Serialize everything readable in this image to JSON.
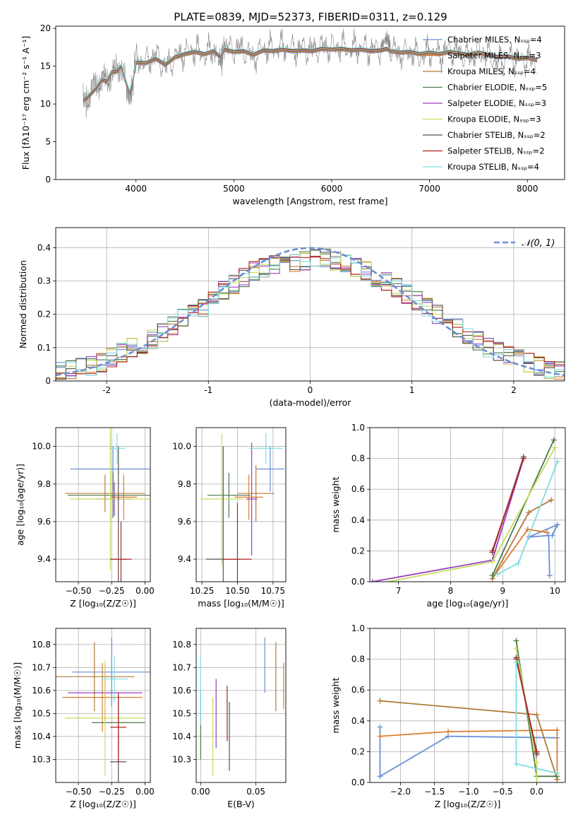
{
  "figure_title": "PLATE=0839, MJD=52373, FIBERID=0311, z=0.129",
  "series": [
    {
      "label": "Chabrier MILES, N_SSP=4",
      "color": "#6a8fd8"
    },
    {
      "label": "Salpeter MILES, N_SSP=3",
      "color": "#dd7d2e"
    },
    {
      "label": "Kroupa MILES, N_SSP=4",
      "color": "#b07a3a"
    },
    {
      "label": "Chabrier ELODIE, N_SSP=5",
      "color": "#4a7a4a"
    },
    {
      "label": "Salpeter ELODIE, N_SSP=3",
      "color": "#9a3fc0"
    },
    {
      "label": "Kroupa ELODIE, N_SSP=3",
      "color": "#c6dd5e"
    },
    {
      "label": "Chabrier STELIB, N_SSP=2",
      "color": "#555555"
    },
    {
      "label": "Salpeter STELIB, N_SSP=2",
      "color": "#b22222"
    },
    {
      "label": "Kroupa STELIB, N_SSP=4",
      "color": "#7fdde0"
    }
  ],
  "chart_data": [
    {
      "id": "spectrum",
      "type": "line",
      "xlabel": "wavelength [Angstrom, rest frame]",
      "ylabel": "Flux [fλ10⁻¹⁷ erg cm⁻² s⁻¹ A⁻¹]",
      "xlim": [
        3180,
        8380
      ],
      "ylim": [
        0,
        20.3
      ],
      "xticks": [
        4000,
        5000,
        6000,
        7000,
        8000
      ],
      "yticks": [
        0,
        5,
        10,
        15,
        20
      ],
      "data_color": "#808080",
      "data_x": [
        3460,
        3500,
        3550,
        3600,
        3650,
        3700,
        3750,
        3800,
        3850,
        3900,
        3935,
        3970,
        4000,
        4100,
        4200,
        4300,
        4400,
        4500,
        4600,
        4700,
        4800,
        4861,
        4900,
        5000,
        5100,
        5200,
        5300,
        5400,
        5500,
        5600,
        5700,
        5800,
        5900,
        6000,
        6100,
        6200,
        6300,
        6400,
        6500,
        6563,
        6600,
        6700,
        6800,
        6900,
        7000,
        7100,
        7200,
        7300,
        7400,
        7500,
        7600,
        7700,
        7800,
        7900,
        8000,
        8100
      ],
      "data_y": [
        11,
        10.2,
        12.5,
        12,
        13.8,
        12.5,
        14.5,
        14,
        15.5,
        12,
        10.5,
        13,
        16,
        15.5,
        16.5,
        14.8,
        16.2,
        16.8,
        17.2,
        16.5,
        17.3,
        15.5,
        17.6,
        17.2,
        17.3,
        16.1,
        17.4,
        17.3,
        17.6,
        17.2,
        17.4,
        17.1,
        17.6,
        17.5,
        17.6,
        17.3,
        17.5,
        17.2,
        17.4,
        18.8,
        17.3,
        16.6,
        17.0,
        16.2,
        16.9,
        16.5,
        17.3,
        16.8,
        16.3,
        17.0,
        16.6,
        15.4,
        16.4,
        15.8,
        16.0,
        15.5
      ],
      "model_x": [
        3460,
        3500,
        3550,
        3600,
        3650,
        3700,
        3750,
        3800,
        3850,
        3900,
        3935,
        3970,
        4000,
        4100,
        4200,
        4300,
        4400,
        4500,
        4600,
        4700,
        4800,
        4861,
        4900,
        5000,
        5100,
        5200,
        5300,
        5400,
        5500,
        5600,
        5700,
        5800,
        5900,
        6000,
        6100,
        6200,
        6300,
        6400,
        6500,
        6563,
        6600,
        6700,
        6800,
        6900,
        7000,
        7100,
        7200,
        7300,
        7400,
        7500,
        7600,
        7700,
        7800,
        7900,
        8000,
        8100
      ],
      "model_y": [
        10.5,
        10.8,
        11.5,
        12.2,
        13.2,
        13.0,
        14.2,
        14.3,
        15.0,
        12.8,
        11.5,
        13.2,
        15.5,
        15.4,
        16.0,
        15.2,
        16.2,
        16.6,
        16.9,
        16.6,
        17.0,
        16.2,
        17.2,
        16.9,
        17.0,
        16.5,
        17.1,
        17.0,
        17.2,
        17.0,
        17.1,
        17.0,
        17.3,
        17.2,
        17.3,
        17.1,
        17.2,
        17.0,
        17.1,
        17.3,
        17.0,
        16.8,
        16.9,
        16.6,
        16.8,
        16.6,
        16.9,
        16.7,
        16.5,
        16.8,
        16.5,
        16.2,
        16.3,
        16.0,
        16.1,
        15.8
      ]
    },
    {
      "id": "residuals",
      "type": "histogram",
      "xlabel": "(data-model)/error",
      "ylabel": "Normed distribution",
      "xlim": [
        -2.5,
        2.5
      ],
      "ylim": [
        0,
        0.46
      ],
      "xticks": [
        -2,
        -1,
        0,
        1,
        2
      ],
      "yticks": [
        0,
        0.1,
        0.2,
        0.3,
        0.4
      ],
      "bin_edges": [
        -2.5,
        -2.4,
        -2.3,
        -2.2,
        -2.1,
        -2.0,
        -1.9,
        -1.8,
        -1.7,
        -1.6,
        -1.5,
        -1.4,
        -1.3,
        -1.2,
        -1.1,
        -1.0,
        -0.9,
        -0.8,
        -0.7,
        -0.6,
        -0.5,
        -0.4,
        -0.3,
        -0.2,
        -0.1,
        0.0,
        0.1,
        0.2,
        0.3,
        0.4,
        0.5,
        0.6,
        0.7,
        0.8,
        0.9,
        1.0,
        1.1,
        1.2,
        1.3,
        1.4,
        1.5,
        1.6,
        1.7,
        1.8,
        1.9,
        2.0,
        2.1,
        2.2,
        2.3,
        2.4,
        2.5
      ],
      "base_heights": [
        0.03,
        0.035,
        0.04,
        0.045,
        0.055,
        0.07,
        0.085,
        0.1,
        0.11,
        0.125,
        0.145,
        0.165,
        0.19,
        0.2,
        0.22,
        0.25,
        0.27,
        0.29,
        0.31,
        0.33,
        0.34,
        0.35,
        0.35,
        0.355,
        0.36,
        0.37,
        0.37,
        0.36,
        0.35,
        0.34,
        0.33,
        0.31,
        0.3,
        0.28,
        0.26,
        0.24,
        0.22,
        0.2,
        0.18,
        0.16,
        0.14,
        0.12,
        0.1,
        0.09,
        0.075,
        0.065,
        0.055,
        0.045,
        0.035,
        0.03
      ],
      "legend": "𝒩(0, 1)",
      "legend_position": "upper right",
      "curve_color": "#6a8fd8"
    },
    {
      "id": "age_vs_Z",
      "type": "errorbar",
      "xlabel": "Z [log₁₀(Z/Z☉)]",
      "ylabel": "age  [log₁₀(age/yr)]",
      "xlim": [
        -0.67,
        0.04
      ],
      "ylim": [
        9.28,
        10.1
      ],
      "xticks": [
        -0.5,
        -0.25,
        0.0
      ],
      "xtick_labels": [
        "−0.50",
        "−0.25",
        "0.00"
      ],
      "yticks": [
        9.4,
        9.6,
        9.8,
        10.0
      ],
      "ytick_labels": [
        "9.4",
        "9.6",
        "9.8",
        "10.0"
      ],
      "points": [
        {
          "s": 0,
          "x": -0.24,
          "xerr": 0.32,
          "y": 9.88,
          "yerr": 0.12
        },
        {
          "s": 1,
          "x": -0.16,
          "xerr": 0.1,
          "y": 9.73,
          "yerr": 0.12
        },
        {
          "s": 3,
          "x": -0.24,
          "xerr": 0.34,
          "y": 9.74,
          "yerr": 0.12
        },
        {
          "s": 4,
          "x": -0.23,
          "xerr": 0.14,
          "y": 9.72,
          "yerr": 0.09
        },
        {
          "s": 5,
          "x": -0.26,
          "xerr": 0.3,
          "y": 9.72,
          "yerr": 0.38
        },
        {
          "s": 6,
          "x": -0.2,
          "xerr": 0.06,
          "y": 9.4,
          "yerr": 0.6
        },
        {
          "s": 7,
          "x": -0.18,
          "xerr": 0.08,
          "y": 9.4,
          "yerr": 0.2
        },
        {
          "s": 8,
          "x": -0.21,
          "xerr": 0.06,
          "y": 9.99,
          "yerr": 0.08
        },
        {
          "s": 2,
          "x": -0.3,
          "xerr": 0.3,
          "y": 9.75,
          "yerr": 0.1
        }
      ]
    },
    {
      "id": "age_vs_mass",
      "type": "errorbar",
      "xlabel": "mass [log₁₀(M/M☉)]",
      "ylabel": "",
      "xlim": [
        10.21,
        10.84
      ],
      "ylim": [
        9.28,
        10.1
      ],
      "xticks": [
        10.25,
        10.5,
        10.75
      ],
      "xtick_labels": [
        "10.25",
        "10.50",
        "10.75"
      ],
      "yticks": [
        9.4,
        9.6,
        9.8,
        10.0
      ],
      "ytick_labels": [
        "9.4",
        "9.6",
        "9.8",
        "10.0"
      ],
      "points": [
        {
          "s": 0,
          "x": 10.73,
          "xerr": 0.1,
          "y": 9.88,
          "yerr": 0.12
        },
        {
          "s": 1,
          "x": 10.58,
          "xerr": 0.1,
          "y": 9.73,
          "yerr": 0.12
        },
        {
          "s": 2,
          "x": 10.63,
          "xerr": 0.13,
          "y": 9.75,
          "yerr": 0.15
        },
        {
          "s": 3,
          "x": 10.44,
          "xerr": 0.15,
          "y": 9.74,
          "yerr": 0.12
        },
        {
          "s": 4,
          "x": 10.6,
          "xerr": 0.04,
          "y": 9.72,
          "yerr": 0.3
        },
        {
          "s": 5,
          "x": 10.39,
          "xerr": 0.15,
          "y": 9.72,
          "yerr": 0.35
        },
        {
          "s": 6,
          "x": 10.4,
          "xerr": 0.12,
          "y": 9.4,
          "yerr": 0.6
        },
        {
          "s": 7,
          "x": 10.5,
          "xerr": 0.1,
          "y": 9.4,
          "yerr": 0.3
        },
        {
          "s": 8,
          "x": 10.7,
          "xerr": 0.12,
          "y": 9.99,
          "yerr": 0.08
        }
      ]
    },
    {
      "id": "weight_vs_age",
      "type": "line",
      "xlabel": "age  [log₁₀(age/yr)]",
      "ylabel": "mass weight",
      "xlim": [
        6.45,
        10.2
      ],
      "ylim": [
        0,
        1
      ],
      "xticks": [
        7,
        8,
        9,
        10
      ],
      "xtick_labels": [
        "7",
        "8",
        "9",
        "10"
      ],
      "yticks": [
        0,
        0.2,
        0.4,
        0.6,
        0.8,
        1.0
      ],
      "ytick_labels": [
        "0.0",
        "0.2",
        "0.4",
        "0.6",
        "0.8",
        "1.0"
      ],
      "lines": [
        {
          "s": 0,
          "x": [
            9.9,
            9.88,
            9.5,
            10.05,
            9.95
          ],
          "y": [
            0.04,
            0.3,
            0.29,
            0.37,
            0.3
          ]
        },
        {
          "s": 1,
          "x": [
            8.8,
            9.48,
            9.85
          ],
          "y": [
            0.02,
            0.34,
            0.32
          ]
        },
        {
          "s": 2,
          "x": [
            8.8,
            9.5,
            9.93
          ],
          "y": [
            0.02,
            0.45,
            0.53
          ]
        },
        {
          "s": 3,
          "x": [
            8.8,
            9.98
          ],
          "y": [
            0.04,
            0.92
          ]
        },
        {
          "s": 4,
          "x": [
            6.5,
            8.8,
            9.4
          ],
          "y": [
            0.0,
            0.14,
            0.8
          ]
        },
        {
          "s": 5,
          "x": [
            6.8,
            8.8,
            10.0
          ],
          "y": [
            0.0,
            0.13,
            0.87
          ]
        },
        {
          "s": 6,
          "x": [
            8.8,
            9.4
          ],
          "y": [
            0.19,
            0.81
          ]
        },
        {
          "s": 7,
          "x": [
            8.8,
            9.4
          ],
          "y": [
            0.2,
            0.8
          ]
        },
        {
          "s": 8,
          "x": [
            8.9,
            9.3,
            10.05
          ],
          "y": [
            0.05,
            0.12,
            0.78
          ]
        }
      ]
    },
    {
      "id": "mass_vs_Z",
      "type": "errorbar",
      "xlabel": "Z [log₁₀(Z/Z☉)]",
      "ylabel": "mass [log₁₀(M/M☉)]",
      "xlim": [
        -0.67,
        0.04
      ],
      "ylim": [
        10.2,
        10.87
      ],
      "xticks": [
        -0.5,
        -0.25,
        0.0
      ],
      "xtick_labels": [
        "−0.50",
        "−0.25",
        "0.00"
      ],
      "yticks": [
        10.3,
        10.4,
        10.5,
        10.6,
        10.7,
        10.8
      ],
      "ytick_labels": [
        "10.3",
        "10.4",
        "10.5",
        "10.6",
        "10.7",
        "10.8"
      ],
      "points": [
        {
          "s": 0,
          "x": -0.25,
          "xerr": 0.3,
          "y": 10.68,
          "yerr": 0.15
        },
        {
          "s": 1,
          "x": -0.32,
          "xerr": 0.3,
          "y": 10.57,
          "yerr": 0.15
        },
        {
          "s": 2,
          "x": -0.38,
          "xerr": 0.3,
          "y": 10.66,
          "yerr": 0.15
        },
        {
          "s": 3,
          "x": -0.2,
          "xerr": 0.2,
          "y": 10.46,
          "yerr": 0.12
        },
        {
          "s": 4,
          "x": -0.3,
          "xerr": 0.28,
          "y": 10.59,
          "yerr": 0.12
        },
        {
          "s": 5,
          "x": -0.3,
          "xerr": 0.3,
          "y": 10.48,
          "yerr": 0.25
        },
        {
          "s": 6,
          "x": -0.2,
          "xerr": 0.06,
          "y": 10.29,
          "yerr": 0.12
        },
        {
          "s": 7,
          "x": -0.2,
          "xerr": 0.06,
          "y": 10.44,
          "yerr": 0.15
        },
        {
          "s": 8,
          "x": -0.23,
          "xerr": 0.1,
          "y": 10.65,
          "yerr": 0.1
        }
      ]
    },
    {
      "id": "mass_vs_ebv",
      "type": "errorbar",
      "xlabel": "E(B-V)",
      "ylabel": "",
      "xlim": [
        -0.004,
        0.077
      ],
      "ylim": [
        10.2,
        10.87
      ],
      "xticks": [
        0,
        0.05
      ],
      "xtick_labels": [
        "0.00",
        "0.05"
      ],
      "yticks": [
        10.3,
        10.4,
        10.5,
        10.6,
        10.7,
        10.8
      ],
      "ytick_labels": [
        "10.3",
        "10.4",
        "10.5",
        "10.6",
        "10.7",
        "10.8"
      ],
      "points": [
        {
          "s": 0,
          "x": 0.058,
          "xerr": 0,
          "y": 10.71,
          "yerr": 0.12
        },
        {
          "s": 1,
          "x": 0.075,
          "xerr": 0,
          "y": 10.62,
          "yerr": 0.1
        },
        {
          "s": 2,
          "x": 0.068,
          "xerr": 0,
          "y": 10.66,
          "yerr": 0.15
        },
        {
          "s": 3,
          "x": 0.0,
          "xerr": 0,
          "y": 10.45,
          "yerr": 0.15
        },
        {
          "s": 4,
          "x": 0.014,
          "xerr": 0,
          "y": 10.5,
          "yerr": 0.15
        },
        {
          "s": 5,
          "x": 0.011,
          "xerr": 0,
          "y": 10.4,
          "yerr": 0.17
        },
        {
          "s": 6,
          "x": 0.026,
          "xerr": 0,
          "y": 10.4,
          "yerr": 0.15
        },
        {
          "s": 7,
          "x": 0.024,
          "xerr": 0,
          "y": 10.5,
          "yerr": 0.12
        },
        {
          "s": 8,
          "x": 0.0,
          "xerr": 0,
          "y": 10.6,
          "yerr": 0.15
        }
      ]
    },
    {
      "id": "weight_vs_Z",
      "type": "line",
      "xlabel": "Z [log₁₀(Z/Z☉)]",
      "ylabel": "mass weight",
      "xlim": [
        -2.45,
        0.42
      ],
      "ylim": [
        0,
        1
      ],
      "xticks": [
        -2.0,
        -1.5,
        -1.0,
        -0.5,
        0.0
      ],
      "xtick_labels": [
        "−2.0",
        "−1.5",
        "−1.0",
        "−0.5",
        "0.0"
      ],
      "yticks": [
        0,
        0.2,
        0.4,
        0.6,
        0.8,
        1.0
      ],
      "ytick_labels": [
        "0.0",
        "0.2",
        "0.4",
        "0.6",
        "0.8",
        "1.0"
      ],
      "lines": [
        {
          "s": 0,
          "x": [
            -2.3,
            -2.3,
            -1.3,
            0.3
          ],
          "y": [
            0.36,
            0.04,
            0.3,
            0.29
          ]
        },
        {
          "s": 1,
          "x": [
            -2.3,
            -1.3,
            0.3,
            0.3
          ],
          "y": [
            0.3,
            0.33,
            0.34,
            0.02
          ]
        },
        {
          "s": 2,
          "x": [
            -2.3,
            0.0,
            0.3
          ],
          "y": [
            0.53,
            0.44,
            0.02
          ]
        },
        {
          "s": 3,
          "x": [
            -0.3,
            0.0,
            0.3
          ],
          "y": [
            0.92,
            0.04,
            0.04
          ]
        },
        {
          "s": 4,
          "x": [
            -0.3,
            0.0
          ],
          "y": [
            0.81,
            0.18
          ]
        },
        {
          "s": 5,
          "x": [
            -0.3,
            0.0,
            0.0
          ],
          "y": [
            0.87,
            0.13,
            0.0
          ]
        },
        {
          "s": 6,
          "x": [
            -0.3,
            0.0
          ],
          "y": [
            0.81,
            0.19
          ]
        },
        {
          "s": 7,
          "x": [
            -0.3,
            0.0
          ],
          "y": [
            0.8,
            0.2
          ]
        },
        {
          "s": 8,
          "x": [
            -0.3,
            -0.3,
            0.3
          ],
          "y": [
            0.78,
            0.12,
            0.06
          ]
        }
      ]
    }
  ]
}
